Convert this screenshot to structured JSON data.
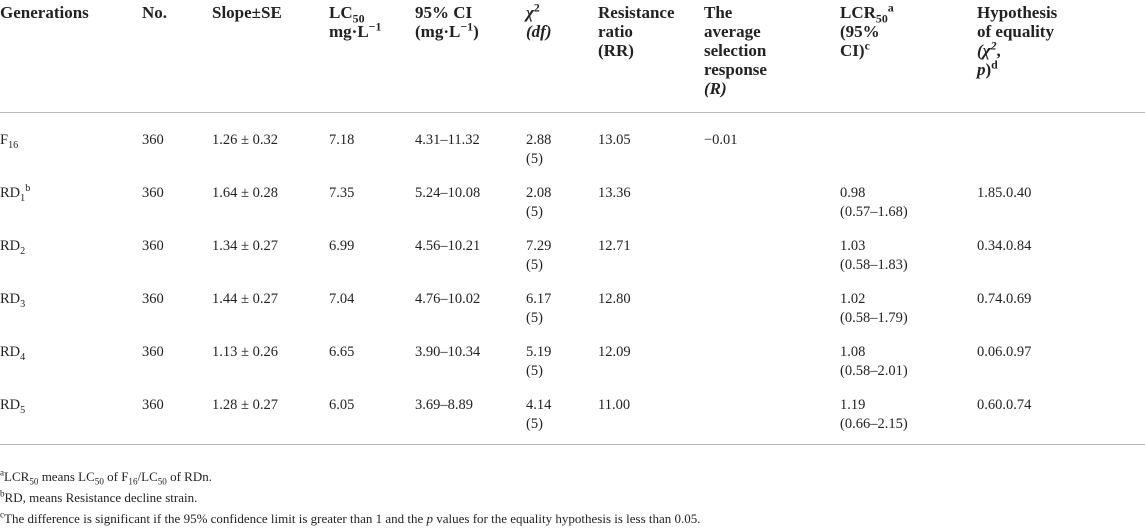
{
  "headers": {
    "generations": "Generations",
    "no": "No.",
    "slope": "Slope±SE",
    "lc50_a": "LC",
    "lc50_sub": "50",
    "lc50_unit": "mg·L",
    "lc50_unit_sup": "−1",
    "ci_a": "95% CI",
    "ci_b": "(mg·L",
    "ci_sup": "−1",
    "ci_c": ")",
    "chi": "χ",
    "chi_sup": "2",
    "df": "(df)",
    "rr_a": "Resistance",
    "rr_b": "ratio",
    "rr_c": "(RR)",
    "avg_a": "The",
    "avg_b": "average",
    "avg_c": "selection",
    "avg_d": "response",
    "avg_e": "(R)",
    "lcr_a": "LCR",
    "lcr_sub": "50",
    "lcr_sup_a": "a",
    "lcr_b": "(95%",
    "lcr_c": "CI)",
    "lcr_sup_c": "c",
    "hyp_a": "Hypothesis",
    "hyp_b": "of equality",
    "hyp_c": "(χ",
    "hyp_c_sup": "2",
    "hyp_c2": ",",
    "hyp_d": "p)",
    "hyp_d_sup": "d"
  },
  "rows": [
    {
      "gen": "F",
      "gen_sub": "16",
      "gen_sup": "",
      "no": "360",
      "slope": "1.26 ± 0.32",
      "lc50": "7.18",
      "ci": "4.31–11.32",
      "chi": "2.88",
      "df": "(5)",
      "rr": "13.05",
      "avg": "−0.01",
      "lcr": "",
      "lcr_ci": "",
      "hyp": ""
    },
    {
      "gen": "RD",
      "gen_sub": "1",
      "gen_sup": "b",
      "no": "360",
      "slope": "1.64 ± 0.28",
      "lc50": "7.35",
      "ci": "5.24–10.08",
      "chi": "2.08",
      "df": "(5)",
      "rr": "13.36",
      "avg": "",
      "lcr": "0.98",
      "lcr_ci": "(0.57–1.68)",
      "hyp": "1.85.0.40"
    },
    {
      "gen": "RD",
      "gen_sub": "2",
      "gen_sup": "",
      "no": "360",
      "slope": "1.34 ± 0.27",
      "lc50": "6.99",
      "ci": "4.56–10.21",
      "chi": "7.29",
      "df": "(5)",
      "rr": "12.71",
      "avg": "",
      "lcr": "1.03",
      "lcr_ci": "(0.58–1.83)",
      "hyp": "0.34.0.84"
    },
    {
      "gen": "RD",
      "gen_sub": "3",
      "gen_sup": "",
      "no": "360",
      "slope": "1.44 ± 0.27",
      "lc50": "7.04",
      "ci": "4.76–10.02",
      "chi": "6.17",
      "df": "(5)",
      "rr": "12.80",
      "avg": "",
      "lcr": "1.02",
      "lcr_ci": "(0.58–1.79)",
      "hyp": "0.74.0.69"
    },
    {
      "gen": "RD",
      "gen_sub": "4",
      "gen_sup": "",
      "no": "360",
      "slope": "1.13 ± 0.26",
      "lc50": "6.65",
      "ci": "3.90–10.34",
      "chi": "5.19",
      "df": "(5)",
      "rr": "12.09",
      "avg": "",
      "lcr": "1.08",
      "lcr_ci": "(0.58–2.01)",
      "hyp": "0.06.0.97"
    },
    {
      "gen": "RD",
      "gen_sub": "5",
      "gen_sup": "",
      "no": "360",
      "slope": "1.28 ± 0.27",
      "lc50": "6.05",
      "ci": "3.69–8.89",
      "chi": "4.14",
      "df": "(5)",
      "rr": "11.00",
      "avg": "",
      "lcr": "1.19",
      "lcr_ci": "(0.66–2.15)",
      "hyp": "0.60.0.74"
    }
  ],
  "notes": {
    "a_mark": "a",
    "a_text1": "LCR",
    "a_sub1": "50",
    "a_text2": " means LC",
    "a_sub2": "50",
    "a_text3": " of F",
    "a_sub3": "16",
    "a_text4": "/LC",
    "a_sub4": "50",
    "a_text5": " of RDn.",
    "b_mark": "b",
    "b_text": "RD, means Resistance decline strain.",
    "c_mark": "c",
    "c_text1": "The difference is significant if the 95% confidence limit is greater than 1 and the ",
    "c_p": "p",
    "c_text2": " values for the equality hypothesis is less than 0.05."
  }
}
